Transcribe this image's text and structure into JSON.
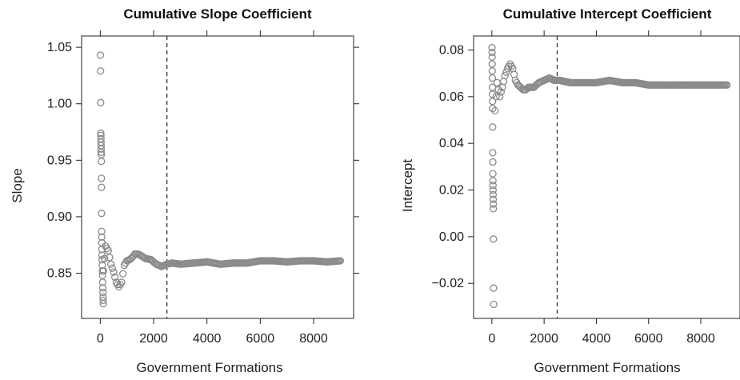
{
  "chart_data": [
    {
      "type": "scatter",
      "title": "Cumulative Slope Coefficient",
      "xlabel": "Government Formations",
      "ylabel": "Slope",
      "xlim": [
        -700,
        9500
      ],
      "ylim": [
        0.81,
        1.06
      ],
      "xticks": [
        0,
        2000,
        4000,
        6000,
        8000
      ],
      "yticks": [
        0.85,
        0.9,
        0.95,
        1.0,
        1.05
      ],
      "ytick_labels": [
        "0.85",
        "0.90",
        "0.95",
        "1.00",
        "1.05"
      ],
      "vline_x": 2500,
      "vline_style": "dashed",
      "marker": "open-circle",
      "color": "#8a8a8a",
      "early_points": [
        [
          5,
          1.043
        ],
        [
          10,
          1.029
        ],
        [
          15,
          1.001
        ],
        [
          20,
          0.974
        ],
        [
          22,
          0.972
        ],
        [
          25,
          0.969
        ],
        [
          28,
          0.966
        ],
        [
          30,
          0.963
        ],
        [
          33,
          0.96
        ],
        [
          35,
          0.957
        ],
        [
          38,
          0.955
        ],
        [
          40,
          0.949
        ],
        [
          42,
          0.934
        ],
        [
          45,
          0.926
        ],
        [
          48,
          0.903
        ],
        [
          52,
          0.887
        ],
        [
          55,
          0.882
        ],
        [
          58,
          0.877
        ],
        [
          60,
          0.871
        ],
        [
          65,
          0.866
        ],
        [
          70,
          0.862
        ],
        [
          75,
          0.857
        ],
        [
          80,
          0.852
        ],
        [
          85,
          0.848
        ],
        [
          90,
          0.842
        ],
        [
          95,
          0.837
        ],
        [
          100,
          0.833
        ],
        [
          105,
          0.829
        ],
        [
          110,
          0.826
        ],
        [
          115,
          0.823
        ]
      ],
      "trend": [
        [
          120,
          0.852
        ],
        [
          200,
          0.874
        ],
        [
          300,
          0.87
        ],
        [
          400,
          0.858
        ],
        [
          500,
          0.851
        ],
        [
          600,
          0.842
        ],
        [
          700,
          0.838
        ],
        [
          800,
          0.842
        ],
        [
          900,
          0.857
        ],
        [
          1000,
          0.861
        ],
        [
          1100,
          0.862
        ],
        [
          1200,
          0.864
        ],
        [
          1300,
          0.867
        ],
        [
          1400,
          0.867
        ],
        [
          1500,
          0.866
        ],
        [
          1700,
          0.863
        ],
        [
          1900,
          0.862
        ],
        [
          2100,
          0.858
        ],
        [
          2300,
          0.856
        ],
        [
          2500,
          0.858
        ],
        [
          2700,
          0.859
        ],
        [
          3000,
          0.858
        ],
        [
          3500,
          0.859
        ],
        [
          4000,
          0.86
        ],
        [
          4500,
          0.858
        ],
        [
          5000,
          0.859
        ],
        [
          5500,
          0.859
        ],
        [
          6000,
          0.861
        ],
        [
          6500,
          0.861
        ],
        [
          7000,
          0.86
        ],
        [
          7500,
          0.861
        ],
        [
          8000,
          0.861
        ],
        [
          8500,
          0.86
        ],
        [
          9000,
          0.861
        ]
      ]
    },
    {
      "type": "scatter",
      "title": "Cumulative Intercept Coefficient",
      "xlabel": "Government Formations",
      "ylabel": "Intercept",
      "xlim": [
        -700,
        9500
      ],
      "ylim": [
        -0.035,
        0.086
      ],
      "xticks": [
        0,
        2000,
        4000,
        6000,
        8000
      ],
      "yticks": [
        -0.02,
        0.0,
        0.02,
        0.04,
        0.06,
        0.08
      ],
      "ytick_labels": [
        "−0.02",
        "0.00",
        "0.02",
        "0.04",
        "0.06",
        "0.08"
      ],
      "vline_x": 2500,
      "vline_style": "dashed",
      "marker": "open-circle",
      "color": "#8a8a8a",
      "early_points": [
        [
          5,
          0.081
        ],
        [
          8,
          0.079
        ],
        [
          10,
          0.077
        ],
        [
          12,
          0.074
        ],
        [
          15,
          0.071
        ],
        [
          18,
          0.068
        ],
        [
          20,
          0.064
        ],
        [
          22,
          0.061
        ],
        [
          25,
          0.058
        ],
        [
          28,
          0.055
        ],
        [
          30,
          0.047
        ],
        [
          32,
          0.036
        ],
        [
          35,
          0.032
        ],
        [
          38,
          0.027
        ],
        [
          40,
          0.024
        ],
        [
          42,
          0.022
        ],
        [
          45,
          0.02
        ],
        [
          48,
          0.018
        ],
        [
          50,
          0.016
        ],
        [
          52,
          0.014
        ],
        [
          55,
          0.012
        ],
        [
          60,
          -0.001
        ],
        [
          65,
          -0.022
        ],
        [
          70,
          -0.029
        ]
      ],
      "trend": [
        [
          120,
          0.054
        ],
        [
          200,
          0.066
        ],
        [
          300,
          0.06
        ],
        [
          400,
          0.064
        ],
        [
          500,
          0.069
        ],
        [
          600,
          0.072
        ],
        [
          700,
          0.074
        ],
        [
          800,
          0.072
        ],
        [
          900,
          0.067
        ],
        [
          1000,
          0.065
        ],
        [
          1100,
          0.064
        ],
        [
          1200,
          0.063
        ],
        [
          1300,
          0.063
        ],
        [
          1400,
          0.064
        ],
        [
          1600,
          0.064
        ],
        [
          1800,
          0.066
        ],
        [
          2000,
          0.067
        ],
        [
          2200,
          0.068
        ],
        [
          2400,
          0.067
        ],
        [
          2600,
          0.067
        ],
        [
          3000,
          0.066
        ],
        [
          3500,
          0.066
        ],
        [
          4000,
          0.066
        ],
        [
          4500,
          0.067
        ],
        [
          5000,
          0.066
        ],
        [
          5500,
          0.066
        ],
        [
          6000,
          0.065
        ],
        [
          6500,
          0.065
        ],
        [
          7000,
          0.065
        ],
        [
          7500,
          0.065
        ],
        [
          8000,
          0.065
        ],
        [
          8500,
          0.065
        ],
        [
          9000,
          0.065
        ]
      ]
    }
  ]
}
